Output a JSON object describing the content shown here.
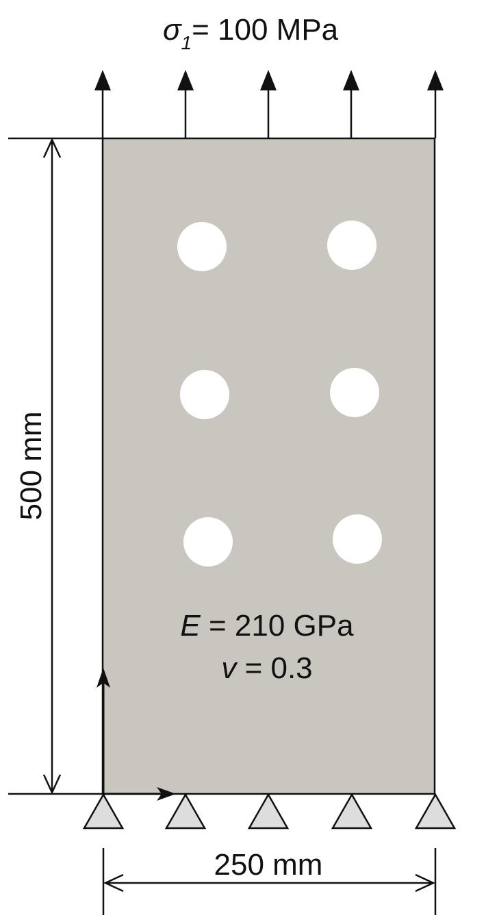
{
  "load": {
    "symbol": "σ",
    "subscript": "1",
    "value_text": "= 100 MPa"
  },
  "dimensions": {
    "height_label": "500 mm",
    "width_label": "250 mm"
  },
  "material": {
    "e_symbol": "E",
    "e_value": "= 210 GPa",
    "nu_symbol": "v",
    "nu_value": "= 0.3"
  },
  "colors": {
    "plate_fill": "#c9c6bf",
    "line": "#111111",
    "hole_fill": "#ffffff",
    "support_fill": "#dddddd"
  }
}
